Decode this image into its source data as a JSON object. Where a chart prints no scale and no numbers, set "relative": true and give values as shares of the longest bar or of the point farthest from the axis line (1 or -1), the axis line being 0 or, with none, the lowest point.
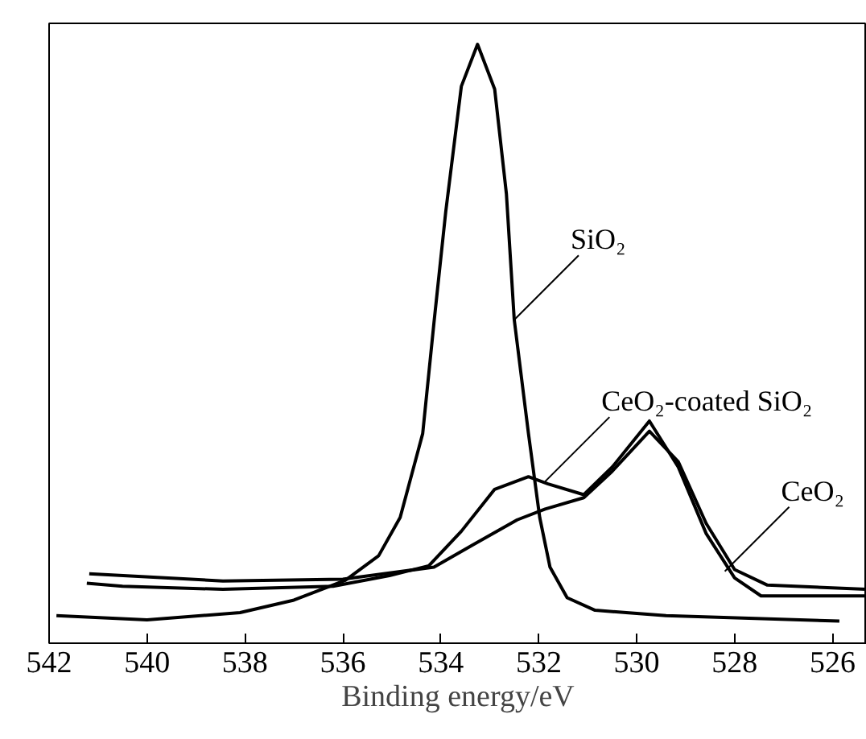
{
  "chart_data": {
    "type": "line",
    "relative": true,
    "xlabel": "Binding energy/eV",
    "xlim": [
      542,
      525.3
    ],
    "xticks": [
      542,
      540,
      538,
      536,
      534,
      532,
      530,
      528,
      526
    ],
    "grid": false,
    "marker": "none",
    "line_style": "solid",
    "series": [
      {
        "color": "#000000",
        "x": [
          541.85,
          540.0,
          538.1,
          537.0,
          535.95,
          535.27,
          534.83,
          534.37,
          534.14,
          533.9,
          533.58,
          533.25,
          532.9,
          532.66,
          532.5,
          532.21,
          531.98,
          531.77,
          531.42,
          530.85,
          529.4,
          525.86
        ],
        "values": [
          0.046,
          0.039,
          0.051,
          0.072,
          0.105,
          0.146,
          0.21,
          0.35,
          0.535,
          0.72,
          0.93,
          1.0,
          0.925,
          0.75,
          0.54,
          0.35,
          0.21,
          0.127,
          0.076,
          0.055,
          0.046,
          0.037
        ]
      },
      {
        "color": "#000000",
        "x": [
          541.23,
          540.5,
          538.45,
          536.2,
          535.05,
          534.25,
          533.58,
          532.9,
          532.21,
          531.81,
          531.08,
          530.5,
          529.74,
          529.15,
          528.58,
          528.0,
          527.46,
          525.3
        ],
        "values": [
          0.1,
          0.095,
          0.09,
          0.095,
          0.113,
          0.129,
          0.187,
          0.257,
          0.278,
          0.266,
          0.248,
          0.294,
          0.371,
          0.294,
          0.183,
          0.109,
          0.079,
          0.079
        ]
      },
      {
        "color": "#000000",
        "x": [
          541.18,
          538.45,
          536.0,
          534.14,
          533.35,
          532.44,
          531.87,
          531.08,
          530.5,
          529.74,
          529.15,
          528.58,
          528.0,
          527.33,
          525.3
        ],
        "values": [
          0.116,
          0.104,
          0.107,
          0.127,
          0.164,
          0.206,
          0.224,
          0.243,
          0.287,
          0.354,
          0.303,
          0.2,
          0.123,
          0.097,
          0.09
        ]
      }
    ],
    "annotations": [
      {
        "text": "SiO₂",
        "x": 532.5,
        "y": 0.54
      },
      {
        "text": "CeO₂-coated SiO₂",
        "x": 531.87,
        "y": 0.27
      },
      {
        "text": "CeO₂",
        "x": 528.2,
        "y": 0.12
      }
    ]
  }
}
